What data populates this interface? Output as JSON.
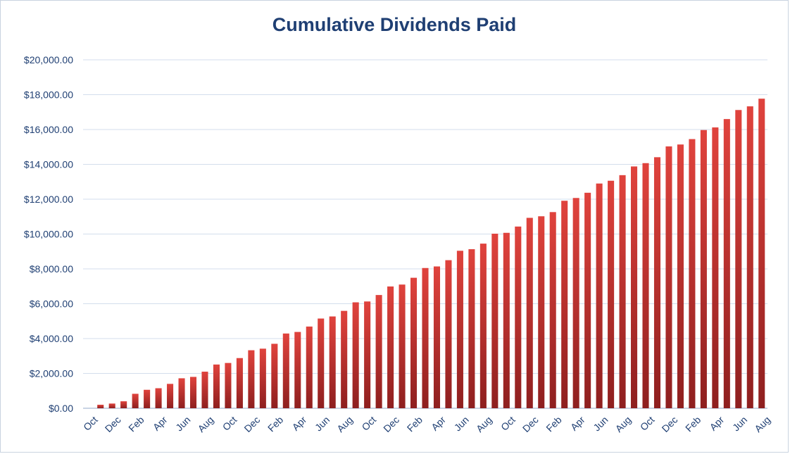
{
  "chart_data": {
    "type": "bar",
    "title": "Cumulative Dividends Paid",
    "xlabel": "",
    "ylabel": "",
    "ylim": [
      0,
      20000
    ],
    "yticks": [
      "$0.00",
      "$2,000.00",
      "$4,000.00",
      "$6,000.00",
      "$8,000.00",
      "$10,000.00",
      "$12,000.00",
      "$14,000.00",
      "$16,000.00",
      "$18,000.00",
      "$20,000.00"
    ],
    "xtick_labels": [
      "Oct",
      "Dec",
      "Feb",
      "Apr",
      "Jun",
      "Aug",
      "Oct",
      "Dec",
      "Feb",
      "Apr",
      "Jun",
      "Aug",
      "Oct",
      "Dec",
      "Feb",
      "Apr",
      "Jun",
      "Aug",
      "Oct",
      "Dec",
      "Feb",
      "Apr",
      "Jun",
      "Aug",
      "Oct",
      "Dec",
      "Feb",
      "Apr",
      "Jun",
      "Aug"
    ],
    "grid": true,
    "legend": "none",
    "bar_color": "#c0302e",
    "series": [
      {
        "values": [
          0,
          200,
          270,
          400,
          830,
          1060,
          1150,
          1400,
          1720,
          1800,
          2100,
          2510,
          2600,
          2880,
          3330,
          3420,
          3700,
          4290,
          4380,
          4690,
          5150,
          5270,
          5590,
          6080,
          6130,
          6500,
          6990,
          7100,
          7490,
          8050,
          8140,
          8500,
          9040,
          9130,
          9450,
          10020,
          10070,
          10430,
          10930,
          11020,
          11260,
          11910,
          12070,
          12370,
          12900,
          13060,
          13380,
          13880,
          14070,
          14410,
          15030,
          15140,
          15450,
          15970,
          16120,
          16600,
          17120,
          17330,
          17770
        ]
      }
    ]
  }
}
